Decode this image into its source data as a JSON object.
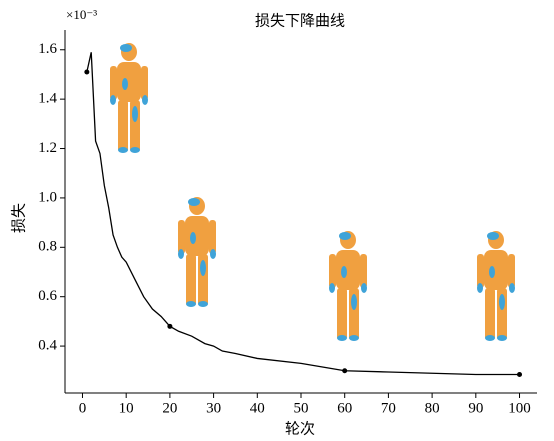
{
  "chart_data": {
    "type": "line",
    "title": "损失下降曲线",
    "x_label": "轮次",
    "y_label": "损失",
    "y_multiplier": "×10⁻³",
    "x": [
      1,
      2,
      3,
      4,
      5,
      6,
      7,
      8,
      9,
      10,
      12,
      14,
      16,
      18,
      20,
      22,
      25,
      28,
      30,
      32,
      35,
      40,
      50,
      60,
      70,
      80,
      90,
      100
    ],
    "values": [
      1.51,
      1.59,
      1.23,
      1.18,
      1.05,
      0.96,
      0.85,
      0.8,
      0.76,
      0.74,
      0.67,
      0.6,
      0.55,
      0.52,
      0.48,
      0.46,
      0.44,
      0.41,
      0.4,
      0.38,
      0.37,
      0.35,
      0.33,
      0.3,
      0.295,
      0.29,
      0.285,
      0.285
    ],
    "color": "#000000",
    "highlighted_points": {
      "x": [
        1,
        20,
        60,
        100
      ],
      "values": [
        1.51,
        0.48,
        0.3,
        0.285
      ]
    },
    "xlim": [
      -4,
      104
    ],
    "xticks": [
      0,
      10,
      20,
      30,
      40,
      50,
      60,
      70,
      80,
      90,
      100
    ],
    "ylim": [
      0.21,
      1.68
    ],
    "yticks": [
      0.4,
      0.6,
      0.8,
      {
        "value": 1.0,
        "label": "1.0"
      },
      1.2,
      1.4,
      1.6
    ],
    "grid": false
  }
}
